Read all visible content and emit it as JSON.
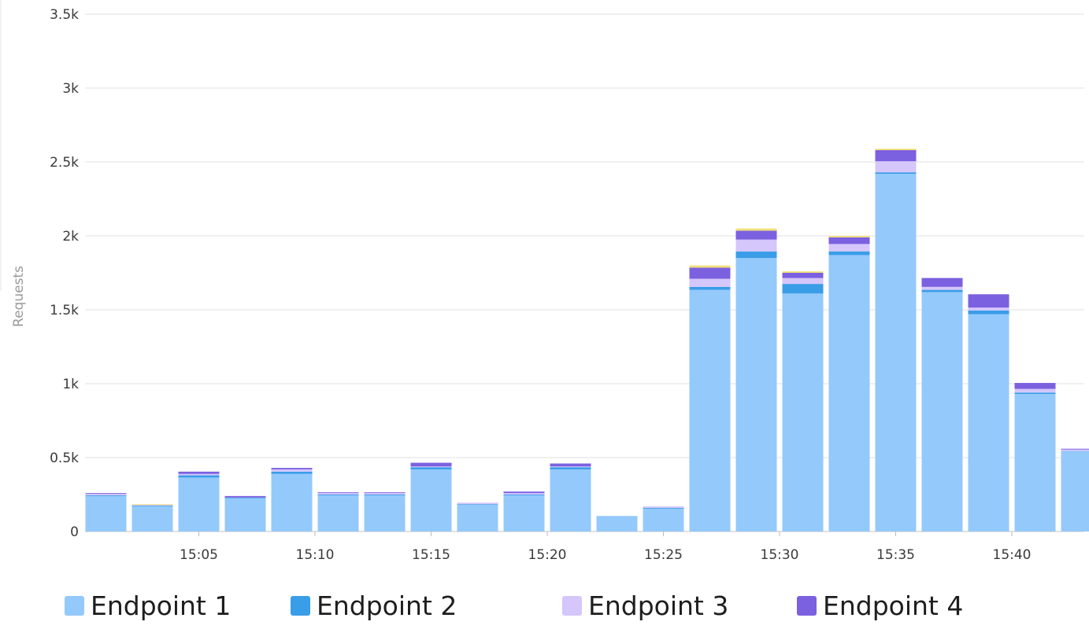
{
  "chart_data": {
    "type": "bar",
    "stacked": true,
    "ylabel": "Requests",
    "ylim": [
      0,
      3500
    ],
    "y_ticks": [
      {
        "value": 0,
        "label": "0"
      },
      {
        "value": 500,
        "label": "0.5k"
      },
      {
        "value": 1000,
        "label": "1k"
      },
      {
        "value": 1500,
        "label": "1.5k"
      },
      {
        "value": 2000,
        "label": "2k"
      },
      {
        "value": 2500,
        "label": "2.5k"
      },
      {
        "value": 3000,
        "label": "3k"
      },
      {
        "value": 3500,
        "label": "3.5k"
      }
    ],
    "x_tick_labels": [
      "15:05",
      "15:10",
      "15:15",
      "15:20",
      "15:25",
      "15:30",
      "15:35",
      "15:40"
    ],
    "categories": [
      "15:01",
      "15:03",
      "15:05",
      "15:07",
      "15:09",
      "15:11",
      "15:13",
      "15:15",
      "15:17",
      "15:19",
      "15:21",
      "15:23",
      "15:25",
      "15:27",
      "15:29",
      "15:31",
      "15:33",
      "15:35",
      "15:37",
      "15:39",
      "15:41",
      "15:43"
    ],
    "series": [
      {
        "name": "Endpoint 1",
        "color": "#94c9fc",
        "values": [
          240,
          170,
          365,
          225,
          390,
          245,
          245,
          420,
          180,
          245,
          420,
          105,
          155,
          1635,
          1850,
          1610,
          1870,
          2420,
          1620,
          1470,
          930,
          545
        ]
      },
      {
        "name": "Endpoint 2",
        "color": "#3a9de8",
        "values": [
          5,
          5,
          15,
          5,
          15,
          5,
          5,
          15,
          5,
          5,
          15,
          0,
          5,
          20,
          45,
          65,
          25,
          10,
          15,
          25,
          10,
          0
        ]
      },
      {
        "name": "Endpoint 3",
        "color": "#d5c6fb",
        "values": [
          10,
          5,
          10,
          0,
          15,
          10,
          10,
          5,
          10,
          10,
          5,
          0,
          10,
          55,
          80,
          40,
          50,
          75,
          20,
          20,
          25,
          10
        ]
      },
      {
        "name": "Endpoint 4",
        "color": "#7b60e0",
        "values": [
          5,
          0,
          15,
          10,
          10,
          5,
          5,
          25,
          0,
          10,
          20,
          0,
          0,
          75,
          60,
          35,
          45,
          75,
          60,
          90,
          40,
          5
        ]
      },
      {
        "color": "#f2df7a",
        "values": [
          0,
          5,
          0,
          0,
          0,
          0,
          0,
          0,
          0,
          0,
          0,
          0,
          0,
          15,
          15,
          10,
          10,
          10,
          0,
          0,
          0,
          0
        ]
      }
    ],
    "legend_position": "bottom",
    "grid": true
  }
}
